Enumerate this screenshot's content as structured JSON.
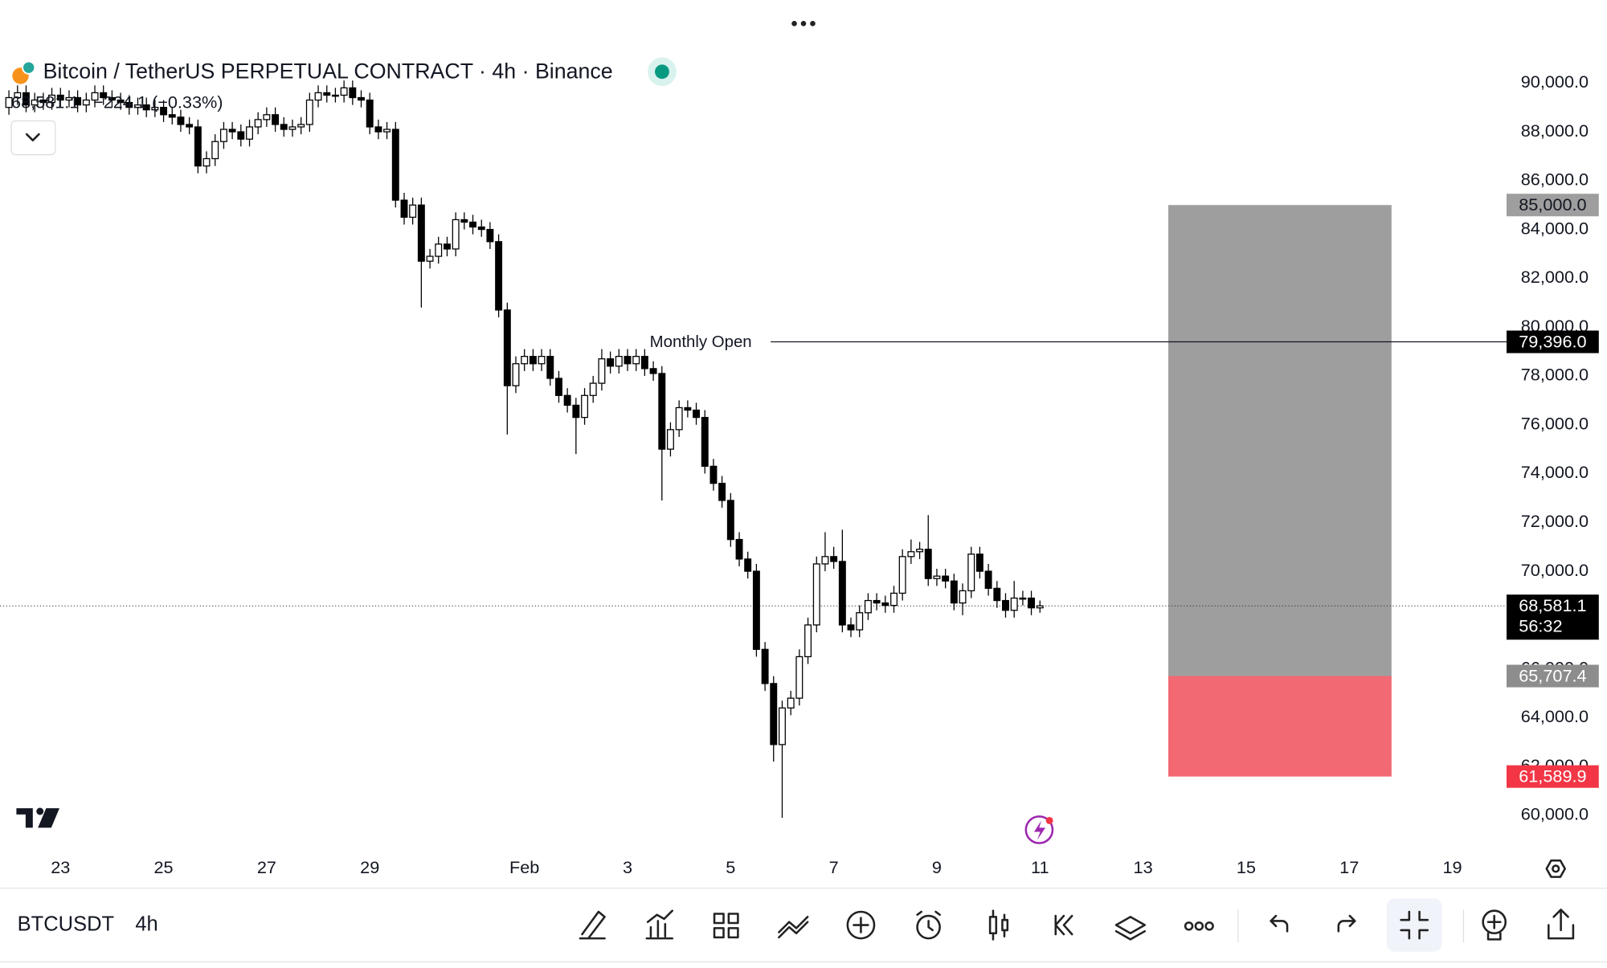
{
  "chart_data": {
    "type": "candlestick",
    "title": "Bitcoin / TetherUS PERPETUAL CONTRACT · 4h · Binance",
    "change_label": "−224.1 (−0.33%)",
    "x": [
      22,
      22.167,
      22.333,
      22.5,
      22.667,
      22.833,
      23,
      23.167,
      23.333,
      23.5,
      23.667,
      23.833,
      24,
      24.167,
      24.333,
      24.5,
      24.667,
      24.833,
      25,
      25.167,
      25.333,
      25.5,
      25.667,
      25.833,
      26,
      26.167,
      26.333,
      26.5,
      26.667,
      26.833,
      27,
      27.167,
      27.333,
      27.5,
      27.667,
      27.833,
      28,
      28.167,
      28.333,
      28.5,
      28.667,
      28.833,
      29,
      29.167,
      29.333,
      29.5,
      29.667,
      29.833,
      30,
      30.167,
      30.333,
      30.5,
      30.667,
      30.833,
      31,
      31.167,
      31.333,
      31.5,
      31.667,
      31.833,
      32,
      32.167,
      32.333,
      32.5,
      32.667,
      32.833,
      33,
      33.167,
      33.333,
      33.5,
      33.667,
      33.833,
      34,
      34.167,
      34.333,
      34.5,
      34.667,
      34.833,
      35,
      35.167,
      35.333,
      35.5,
      35.667,
      35.833,
      36,
      36.167,
      36.333,
      36.5,
      36.667,
      36.833,
      37,
      37.167,
      37.333,
      37.5,
      37.667,
      37.833,
      38,
      38.167,
      38.333,
      38.5,
      38.667,
      38.833,
      39,
      39.167,
      39.333,
      39.5,
      39.667,
      39.833,
      40,
      40.167,
      40.333,
      40.5,
      40.667,
      40.833,
      41,
      41.167,
      41.333,
      41.5,
      41.667,
      41.833,
      42
    ],
    "open": [
      89000,
      89400,
      89600,
      89100,
      89300,
      89200,
      89500,
      89300,
      89400,
      89100,
      89300,
      89600,
      89400,
      89300,
      89200,
      89000,
      89100,
      88900,
      89000,
      88700,
      88600,
      88300,
      88200,
      86600,
      86900,
      87600,
      88100,
      88000,
      87700,
      88200,
      88500,
      88700,
      88300,
      88100,
      88200,
      88300,
      89300,
      89600,
      89500,
      89500,
      89800,
      89400,
      89300,
      88200,
      88000,
      88100,
      85200,
      84500,
      85000,
      82700,
      82900,
      83400,
      83200,
      84400,
      84300,
      84100,
      84000,
      83500,
      80700,
      77600,
      78500,
      78800,
      78500,
      78800,
      77900,
      77200,
      76800,
      76300,
      77200,
      77700,
      78700,
      78400,
      78800,
      78500,
      78800,
      78300,
      78100,
      75000,
      75800,
      76700,
      76600,
      76300,
      74300,
      73600,
      72900,
      71300,
      70500,
      70000,
      66800,
      65400,
      62900,
      64400,
      64800,
      66500,
      67800,
      70300,
      70600,
      70400,
      67800,
      67600,
      68300,
      68800,
      68700,
      68600,
      69100,
      70600,
      70800,
      70900,
      69700,
      69800,
      69600,
      68700,
      69200,
      70700,
      70000,
      69300,
      68800,
      68400,
      68900,
      68900,
      68500
    ],
    "high": [
      89700,
      89900,
      89900,
      89600,
      89600,
      89800,
      89800,
      89700,
      89700,
      89600,
      89900,
      89900,
      89700,
      89600,
      89500,
      89400,
      89400,
      89300,
      89300,
      89000,
      88900,
      88600,
      88500,
      87200,
      87900,
      88400,
      88400,
      88300,
      88500,
      88800,
      89000,
      89000,
      88600,
      88500,
      88600,
      89600,
      89900,
      89900,
      89800,
      90100,
      90100,
      89700,
      89600,
      88500,
      88400,
      88400,
      85500,
      85300,
      85300,
      83200,
      83700,
      83700,
      84700,
      84700,
      84600,
      84400,
      84300,
      83800,
      81000,
      78800,
      79100,
      79100,
      79100,
      79100,
      78200,
      77500,
      77100,
      77500,
      78000,
      79100,
      79000,
      79100,
      79100,
      79100,
      79100,
      78600,
      78400,
      76100,
      77000,
      77000,
      76900,
      76600,
      74600,
      73900,
      73200,
      71600,
      70800,
      70300,
      67100,
      65700,
      64700,
      65100,
      66800,
      68100,
      70600,
      71600,
      71000,
      71700,
      68100,
      68600,
      69100,
      69100,
      69000,
      69400,
      70900,
      71300,
      71200,
      72300,
      70100,
      70100,
      69900,
      69500,
      71000,
      71000,
      70300,
      69600,
      69100,
      69600,
      69200,
      69200,
      68800
    ],
    "low": [
      88700,
      89100,
      88800,
      88800,
      88900,
      88900,
      89000,
      89000,
      88800,
      88800,
      89000,
      89100,
      89000,
      88900,
      88700,
      88700,
      88600,
      88600,
      88400,
      88300,
      88000,
      87900,
      86300,
      86300,
      86600,
      87300,
      87700,
      87400,
      87400,
      87900,
      88200,
      88000,
      87800,
      87800,
      87900,
      88000,
      89000,
      89200,
      89200,
      89200,
      89100,
      89000,
      87900,
      87700,
      87700,
      84900,
      84200,
      84200,
      80800,
      82400,
      82600,
      82900,
      82900,
      84000,
      83800,
      83700,
      83200,
      80400,
      75600,
      77300,
      78200,
      78200,
      78200,
      77600,
      76900,
      76500,
      74800,
      76000,
      76900,
      77400,
      78100,
      78100,
      78200,
      78200,
      78000,
      77800,
      72900,
      74700,
      75500,
      76300,
      76000,
      74000,
      73300,
      72600,
      71000,
      70200,
      69700,
      66500,
      65100,
      62200,
      59900,
      64100,
      64500,
      66200,
      67500,
      70000,
      70100,
      67500,
      67300,
      67300,
      68000,
      68400,
      68300,
      68300,
      68800,
      70300,
      70500,
      69400,
      69400,
      69300,
      68400,
      68200,
      68900,
      69700,
      69000,
      68500,
      68100,
      68100,
      68600,
      68200,
      68300
    ],
    "close": [
      89400,
      89600,
      89100,
      89300,
      89200,
      89500,
      89300,
      89400,
      89100,
      89300,
      89600,
      89400,
      89300,
      89200,
      89000,
      89100,
      88900,
      89000,
      88700,
      88600,
      88300,
      88200,
      86600,
      86900,
      87600,
      88100,
      88000,
      87700,
      88200,
      88500,
      88700,
      88300,
      88100,
      88200,
      88300,
      89300,
      89600,
      89500,
      89500,
      89800,
      89400,
      89300,
      88200,
      88000,
      88100,
      85200,
      84500,
      85000,
      82700,
      82900,
      83400,
      83200,
      84400,
      84300,
      84100,
      84000,
      83500,
      80700,
      77600,
      78500,
      78800,
      78500,
      78800,
      77900,
      77200,
      76800,
      76300,
      77200,
      77700,
      78700,
      78400,
      78800,
      78500,
      78800,
      78300,
      78100,
      75000,
      75800,
      76700,
      76600,
      76300,
      74300,
      73600,
      72900,
      71300,
      70500,
      70000,
      66800,
      65400,
      62900,
      64400,
      64800,
      66500,
      67800,
      70300,
      70600,
      70400,
      67800,
      67600,
      68300,
      68800,
      68700,
      68600,
      69100,
      70600,
      70800,
      70900,
      69700,
      69800,
      69600,
      68700,
      69200,
      70700,
      70000,
      69300,
      68800,
      68400,
      68900,
      68900,
      68500,
      68581.1
    ],
    "colors": {
      "up": "#ffffff",
      "down": "#000000",
      "target": "#9e9e9e",
      "stop": "#f26873"
    },
    "xlim": [
      21.827,
      50.952
    ],
    "ylim": [
      58570,
      91720
    ],
    "xticks": [
      23,
      25,
      27,
      29,
      {
        "value": 32,
        "label": "Feb"
      },
      {
        "value": 34,
        "label": "3"
      },
      {
        "value": 36,
        "label": "5"
      },
      {
        "value": 38,
        "label": "7"
      },
      {
        "value": 40,
        "label": "9"
      },
      {
        "value": 42,
        "label": "11"
      },
      {
        "value": 44,
        "label": "13"
      },
      {
        "value": 46,
        "label": "15"
      },
      {
        "value": 48,
        "label": "17"
      },
      {
        "value": 50,
        "label": "19"
      }
    ],
    "yticks": [
      {
        "value": 60000,
        "label": "60,000.0"
      },
      {
        "value": 62000,
        "label": "62,000.0"
      },
      {
        "value": 64000,
        "label": "64,000.0"
      },
      {
        "value": 66000,
        "label": "66,000.0"
      },
      {
        "value": 68000,
        "label": "68,000.0"
      },
      {
        "value": 70000,
        "label": "70,000.0"
      },
      {
        "value": 72000,
        "label": "72,000.0"
      },
      {
        "value": 74000,
        "label": "74,000.0"
      },
      {
        "value": 76000,
        "label": "76,000.0"
      },
      {
        "value": 78000,
        "label": "78,000.0"
      },
      {
        "value": 80000,
        "label": "80,000.0"
      },
      {
        "value": 82000,
        "label": "82,000.0"
      },
      {
        "value": 84000,
        "label": "84,000.0"
      },
      {
        "value": 86000,
        "label": "86,000.0"
      },
      {
        "value": 88000,
        "label": "88,000.0"
      },
      {
        "value": 90000,
        "label": "90,000.0"
      }
    ],
    "price_line": {
      "name": "Monthly Open",
      "value": 79396,
      "label": "79,396.0"
    },
    "current_price": {
      "value": 68581.1,
      "label": "68,581.1",
      "countdown": "56:32"
    },
    "position": {
      "target": {
        "value": 85000,
        "label": "85,000.0"
      },
      "entry": {
        "value": 65707.4,
        "label": "65,707.4"
      },
      "stop": {
        "value": 61589.9,
        "label": "61,589.9"
      },
      "x_start": 44.49,
      "x_end": 48.82
    }
  },
  "toolbar": {
    "symbol": "BTCUSDT",
    "interval": "4h"
  }
}
